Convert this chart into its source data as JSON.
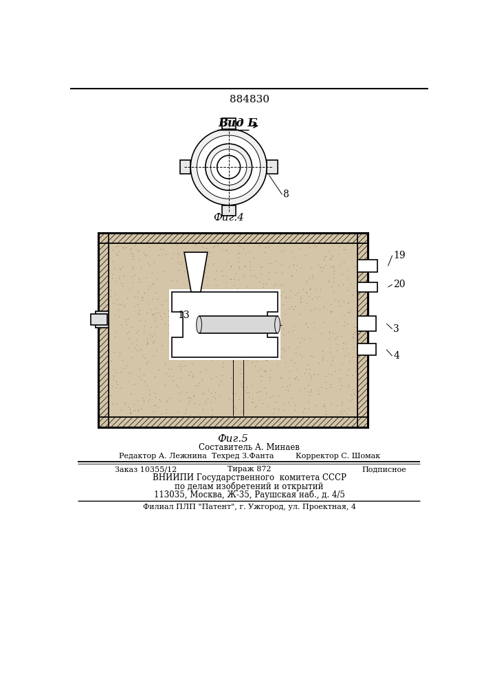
{
  "patent_number": "884830",
  "fig4_label": "Вид Б",
  "fig4_caption": "Фиг.4",
  "fig5_caption": "Фиг.5",
  "label_8": "8",
  "label_19": "19",
  "label_20": "20",
  "label_3": "3",
  "label_4": "4",
  "label_13": "13",
  "footer_line1": "Составитель А. Минаев",
  "footer_line2_left": "Редактор А. Лежнина  Техред З.Фанта",
  "footer_line2_right": "Корректор С. Шомак",
  "footer_line3_a": "Заказ 10355/12",
  "footer_line3_b": "Тираж 872",
  "footer_line3_c": "Подписное",
  "footer_line4": "ВНИИПИ Государственного  комитета СССР",
  "footer_line5": "по делам изобретений и открытий",
  "footer_line6": "113035, Москва, Ж-35, Раушская наб., д. 4/5",
  "footer_line7": "Филиал ПЛП \"Патент\", г. Ужгород, ул. Проектная, 4",
  "bg_color": "#ffffff",
  "line_color": "#000000",
  "sand_color": "#d4c4a8",
  "sand_dot_color": "#7a6545",
  "hatch_color": "#000000"
}
